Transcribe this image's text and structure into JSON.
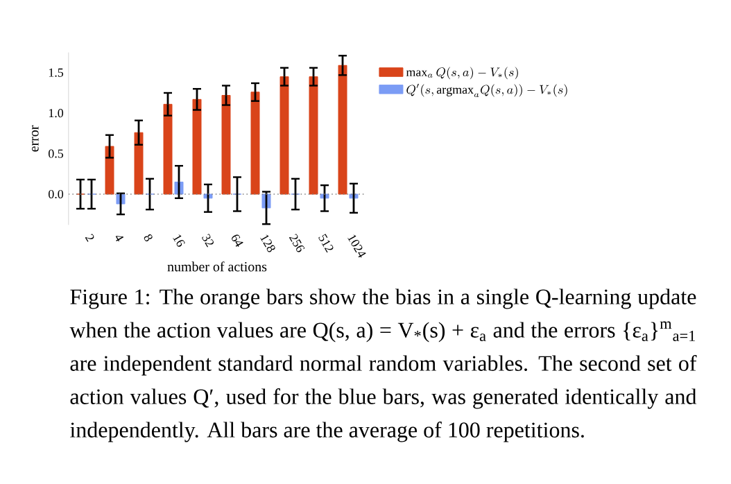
{
  "chart_data": {
    "type": "bar",
    "xlabel": "number of actions",
    "ylabel": "error",
    "categories": [
      "2",
      "4",
      "8",
      "16",
      "32",
      "64",
      "128",
      "256",
      "512",
      "1024"
    ],
    "series": [
      {
        "name": "\\max_a Q(s,a) - V_*(s)",
        "color": "#d9441a",
        "values": [
          0,
          0.59,
          0.76,
          1.11,
          1.17,
          1.22,
          1.26,
          1.45,
          1.45,
          1.59
        ],
        "errors": [
          0.18,
          0.14,
          0.15,
          0.14,
          0.13,
          0.12,
          0.11,
          0.11,
          0.11,
          0.12
        ]
      },
      {
        "name": "Q'(s, \\mathrm{argmax}_a Q(s,a)) - V_*(s)",
        "color": "#7b9cf5",
        "values": [
          0,
          -0.12,
          0,
          0.15,
          -0.05,
          0,
          -0.17,
          0,
          -0.05,
          -0.05
        ],
        "errors": [
          0.18,
          0.13,
          0.19,
          0.2,
          0.17,
          0.21,
          0.2,
          0.19,
          0.16,
          0.18
        ]
      }
    ],
    "ylim": [
      -0.38,
      1.75
    ],
    "yticks": [
      {
        "value": 0,
        "label": "0.0"
      },
      {
        "value": 0.5,
        "label": "0.5"
      },
      {
        "value": 1.0,
        "label": "1.0"
      },
      1.5
    ],
    "ref_lines": [
      {
        "axis": "y",
        "value": 0,
        "line_style": "dotted",
        "color": "#808080"
      }
    ],
    "legend": "right",
    "grid": false,
    "annotations": [
      "Figure 1:  The orange bars show the bias in a single Q-learning update when the action values are Q(s, a) = V$_{*}$(s) + ε$_{a}$ and the errors {ε$_{a}$}$^{m}$$_{a=1}$ are independent standard normal random variables. The second set of action values Q′, used for the blue bars, was generated identically and independently. All bars are the average of 100 repetitions."
    ]
  }
}
